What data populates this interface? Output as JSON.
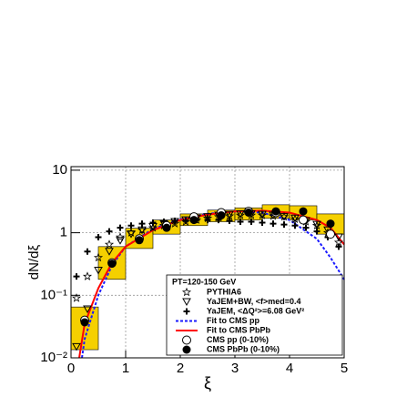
{
  "chart_data": {
    "type": "scatter",
    "x_label": "ξ",
    "y_label": "dN/dξ",
    "xlim": [
      0,
      5
    ],
    "ylim": [
      0.01,
      11.4
    ],
    "log_y": true,
    "grid": true,
    "xticks": [
      0,
      1,
      2,
      3,
      4,
      5
    ],
    "yticks": [
      {
        "value": 0.01,
        "label": "10⁻²"
      },
      {
        "value": 0.1,
        "label": "10⁻¹"
      },
      1,
      10
    ],
    "legend_title": "PT=120-150 GeV",
    "legend": "lower right",
    "series": [
      {
        "name": "PYTHIA6",
        "kind": "points",
        "marker": "star",
        "color": "#000000",
        "x": [
          0.1,
          0.3,
          0.5,
          0.7,
          0.9,
          1.1,
          1.3,
          1.5,
          1.7,
          1.9,
          2.1,
          2.3,
          2.5,
          2.7,
          2.9,
          3.1,
          3.3,
          3.5,
          3.7,
          3.9,
          4.1,
          4.3,
          4.5,
          4.7,
          4.9
        ],
        "values": [
          0.09,
          0.2,
          0.4,
          0.65,
          0.85,
          1.0,
          1.1,
          1.2,
          1.3,
          1.4,
          1.5,
          1.6,
          1.7,
          1.8,
          1.85,
          1.9,
          1.9,
          1.9,
          1.85,
          1.8,
          1.65,
          1.5,
          1.3,
          1.0,
          0.7
        ]
      },
      {
        "name": "YaJEM+BW, <f>med=0.4",
        "kind": "points",
        "marker": "triangle-down",
        "color": "#000000",
        "x": [
          0.1,
          0.3,
          0.5,
          0.7,
          0.9,
          1.1,
          1.3,
          1.5,
          1.7,
          1.9,
          2.1,
          2.3,
          2.5,
          2.7,
          2.9,
          3.1,
          3.3,
          3.5,
          3.7,
          3.9,
          4.1,
          4.3,
          4.5,
          4.7,
          4.9
        ],
        "values": [
          0.015,
          0.06,
          0.25,
          0.5,
          0.75,
          0.95,
          1.1,
          1.25,
          1.4,
          1.5,
          1.6,
          1.7,
          1.8,
          1.9,
          1.95,
          2.0,
          2.0,
          1.95,
          1.9,
          1.8,
          1.7,
          1.55,
          1.35,
          1.1,
          0.85
        ]
      },
      {
        "name": "YaJEM, <ΔQ²>=6.08 GeV²",
        "kind": "points",
        "marker": "plus",
        "color": "#000000",
        "x": [
          0.1,
          0.3,
          0.5,
          0.7,
          0.9,
          1.1,
          1.3,
          1.5,
          1.7,
          1.9,
          2.1,
          2.3,
          2.5,
          2.7,
          2.9,
          3.1,
          3.3,
          3.5,
          3.7,
          3.9,
          4.1,
          4.3,
          4.5,
          4.7,
          4.9
        ],
        "values": [
          0.2,
          0.5,
          0.85,
          1.05,
          1.2,
          1.3,
          1.4,
          1.45,
          1.5,
          1.55,
          1.55,
          1.6,
          1.6,
          1.6,
          1.55,
          1.5,
          1.5,
          1.45,
          1.4,
          1.35,
          1.3,
          1.2,
          1.05,
          0.85,
          0.6
        ]
      },
      {
        "name": "Fit to CMS pp",
        "kind": "line",
        "style": "dashed",
        "color": "#1a1aff",
        "x": [
          0.2,
          0.25,
          0.5,
          0.75,
          1,
          1.5,
          2,
          2.5,
          3,
          3.5,
          4,
          4.5,
          4.75,
          5
        ],
        "values": [
          0.01,
          0.02,
          0.1,
          0.3,
          0.6,
          1.15,
          1.65,
          2.0,
          2.2,
          2.1,
          1.6,
          0.8,
          0.4,
          0.18
        ]
      },
      {
        "name": "Fit to CMS PbPb",
        "kind": "line",
        "style": "solid",
        "color": "#ff0000",
        "x": [
          0.15,
          0.25,
          0.5,
          0.75,
          1,
          1.5,
          2,
          2.5,
          3,
          3.5,
          4,
          4.5,
          4.75,
          5
        ],
        "values": [
          0.01,
          0.035,
          0.13,
          0.33,
          0.6,
          1.1,
          1.6,
          1.95,
          2.2,
          2.25,
          2.1,
          1.6,
          1.2,
          0.65
        ]
      },
      {
        "name": "CMS pp (0-10%)",
        "kind": "points",
        "marker": "circle-open",
        "color": "#000000",
        "x": [
          0.25,
          0.75,
          1.25,
          1.75,
          2.25,
          2.75,
          3.25,
          3.75,
          4.25,
          4.75
        ],
        "values": [
          0.04,
          0.33,
          0.8,
          1.3,
          1.8,
          2.1,
          2.2,
          2.1,
          1.6,
          0.95
        ]
      },
      {
        "name": "CMS PbPb (0-10%)",
        "kind": "points",
        "marker": "circle-filled",
        "color": "#000000",
        "box_color": "#f5d000",
        "x": [
          0.25,
          0.75,
          1.25,
          1.75,
          2.25,
          2.75,
          3.25,
          3.75,
          4.25,
          4.75
        ],
        "values": [
          0.037,
          0.32,
          0.76,
          1.2,
          1.6,
          1.9,
          2.1,
          2.2,
          2.2,
          1.4
        ],
        "syst_low": [
          0.0135,
          0.18,
          0.56,
          0.95,
          1.3,
          1.5,
          1.6,
          1.7,
          1.6,
          0.95
        ],
        "syst_high": [
          0.065,
          0.6,
          1.18,
          1.6,
          2.0,
          2.3,
          2.5,
          2.8,
          2.7,
          2.0
        ]
      }
    ]
  }
}
